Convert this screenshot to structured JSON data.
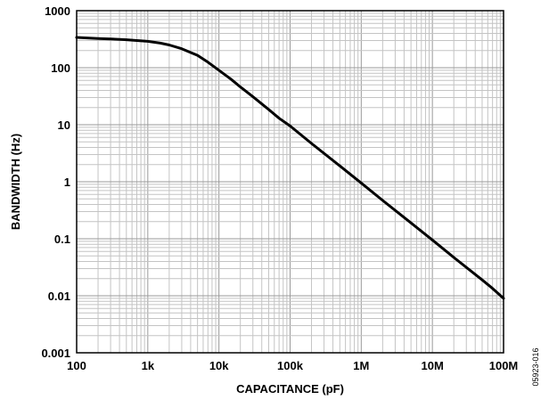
{
  "chart_data": {
    "type": "line",
    "title": "",
    "xlabel": "CAPACITANCE (pF)",
    "ylabel": "BANDWIDTH (Hz)",
    "x_scale": "log",
    "y_scale": "log",
    "xlim": [
      100,
      100000000
    ],
    "ylim": [
      0.001,
      1000
    ],
    "grid": true,
    "x_ticks": [
      {
        "value": 100,
        "label": "100"
      },
      {
        "value": 1000,
        "label": "1k"
      },
      {
        "value": 10000,
        "label": "10k"
      },
      {
        "value": 100000,
        "label": "100k"
      },
      {
        "value": 1000000,
        "label": "1M"
      },
      {
        "value": 10000000,
        "label": "10M"
      },
      {
        "value": 100000000,
        "label": "100M"
      }
    ],
    "y_ticks": [
      {
        "value": 1000,
        "label": "1000"
      },
      {
        "value": 100,
        "label": "100"
      },
      {
        "value": 10,
        "label": "10"
      },
      {
        "value": 1,
        "label": "1"
      },
      {
        "value": 0.1,
        "label": "0.1"
      },
      {
        "value": 0.01,
        "label": "0.01"
      },
      {
        "value": 0.001,
        "label": "0.001"
      }
    ],
    "series": [
      {
        "color": "#000000",
        "points": [
          [
            100,
            340
          ],
          [
            150,
            330
          ],
          [
            200,
            325
          ],
          [
            300,
            320
          ],
          [
            500,
            310
          ],
          [
            700,
            300
          ],
          [
            1000,
            290
          ],
          [
            1500,
            270
          ],
          [
            2000,
            250
          ],
          [
            3000,
            215
          ],
          [
            5000,
            165
          ],
          [
            7000,
            125
          ],
          [
            10000,
            90
          ],
          [
            15000,
            62
          ],
          [
            20000,
            46
          ],
          [
            30000,
            31
          ],
          [
            50000,
            18.5
          ],
          [
            70000,
            13
          ],
          [
            100000,
            9.5
          ],
          [
            200000,
            4.7
          ],
          [
            500000,
            1.9
          ],
          [
            1000000,
            0.95
          ],
          [
            2000000,
            0.47
          ],
          [
            5000000,
            0.19
          ],
          [
            10000000,
            0.095
          ],
          [
            20000000,
            0.047
          ],
          [
            50000000,
            0.019
          ],
          [
            70000000,
            0.0135
          ],
          [
            100000000,
            0.009
          ]
        ]
      }
    ]
  },
  "figure_id": "05923-016"
}
